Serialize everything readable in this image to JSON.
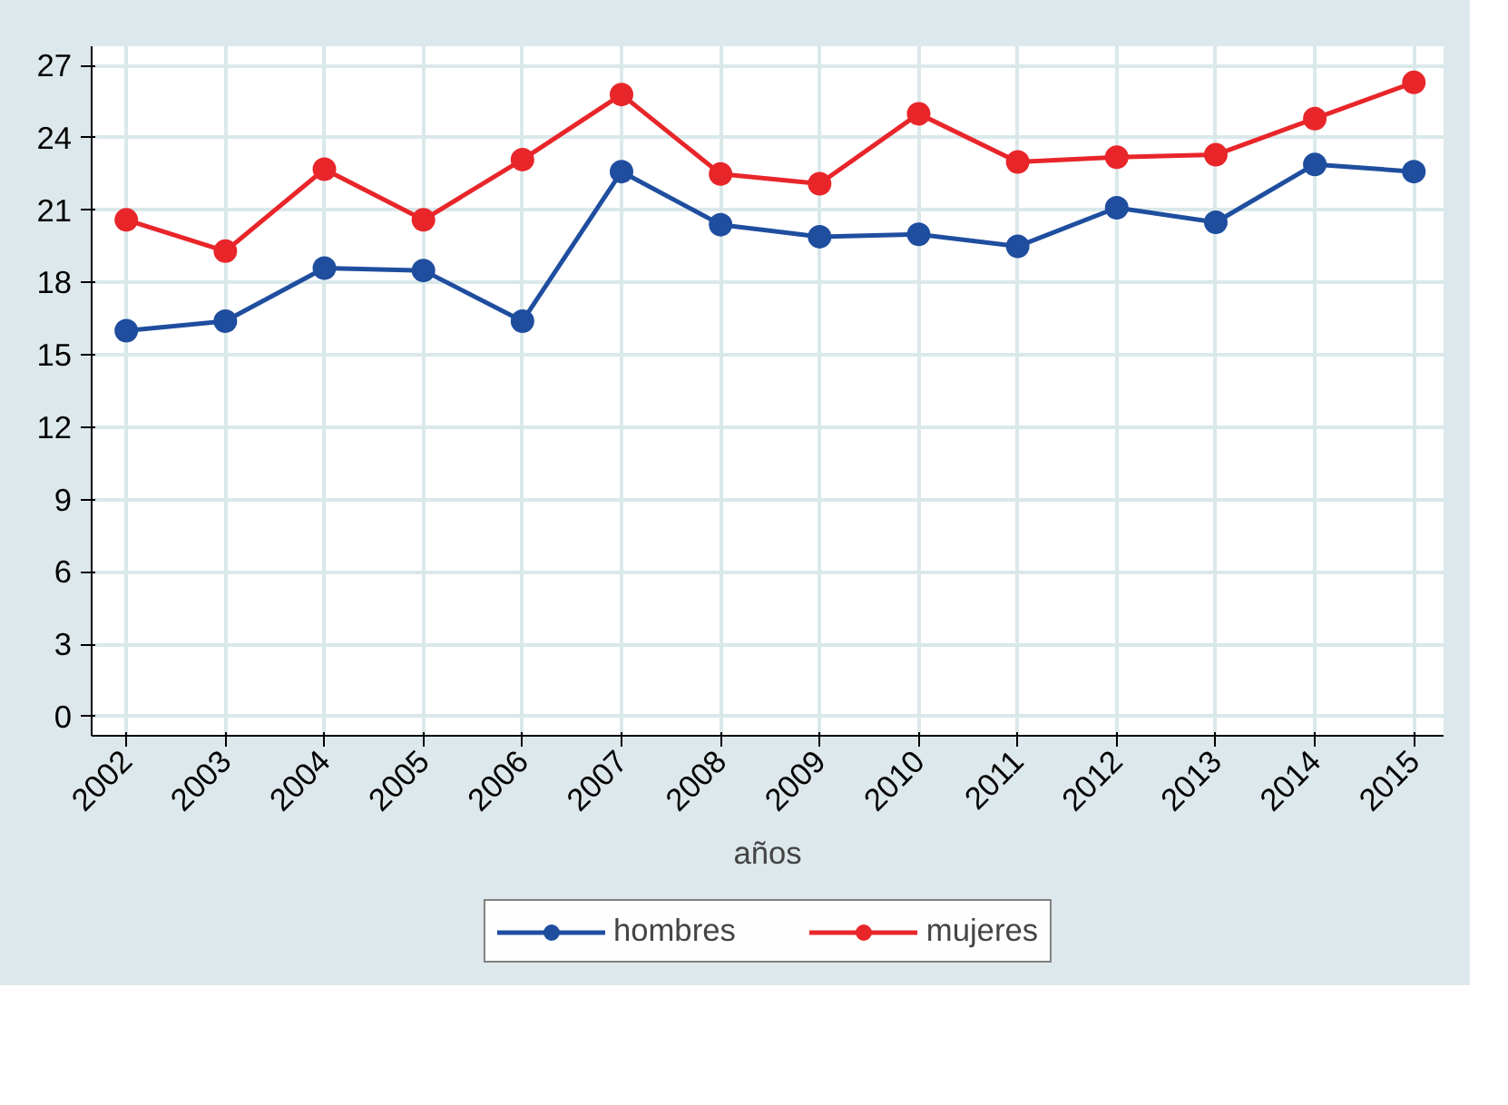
{
  "chart_data": {
    "type": "line",
    "xlabel": "años",
    "categories": [
      "2002",
      "2003",
      "2004",
      "2005",
      "2006",
      "2007",
      "2008",
      "2009",
      "2010",
      "2011",
      "2012",
      "2013",
      "2014",
      "2015"
    ],
    "series": [
      {
        "name": "hombres",
        "color": "#1f4e9f",
        "values": [
          16.0,
          16.4,
          18.6,
          18.5,
          16.4,
          22.6,
          20.4,
          19.9,
          20.0,
          19.5,
          21.1,
          20.5,
          22.9,
          22.6
        ]
      },
      {
        "name": "mujeres",
        "color": "#e8262a",
        "values": [
          20.6,
          19.3,
          22.7,
          20.6,
          23.1,
          25.8,
          22.5,
          22.1,
          25.0,
          23.0,
          23.2,
          23.3,
          24.8,
          26.3
        ]
      }
    ],
    "ylim": [
      -0.8,
      27.8
    ],
    "yticks": [
      0,
      3,
      6,
      9,
      12,
      15,
      18,
      21,
      24,
      27
    ],
    "grid": true,
    "legend": "bottom",
    "marker": "circle",
    "line_style": "solid"
  }
}
